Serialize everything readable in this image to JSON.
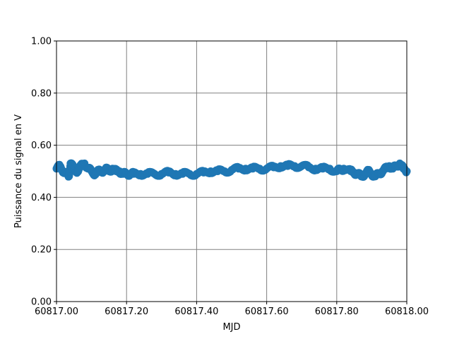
{
  "chart_data": {
    "type": "scatter",
    "xlabel": "MJD",
    "ylabel": "Puissance du signal en V",
    "xlim": [
      60817.0,
      60818.0
    ],
    "ylim": [
      0.0,
      1.0
    ],
    "x_ticks": [
      "60817.00",
      "60817.20",
      "60817.40",
      "60817.60",
      "60817.80",
      "60818.00"
    ],
    "y_ticks": [
      "0.00",
      "0.20",
      "0.40",
      "0.60",
      "0.80",
      "1.00"
    ],
    "grid": true,
    "grid_color": "#808080",
    "marker_color": "#1f77b4",
    "series": [
      {
        "x": [
          60817.0,
          60817.01,
          60817.02,
          60817.03,
          60817.035,
          60817.04,
          60817.05,
          60817.06,
          60817.07,
          60817.08,
          60817.09,
          60817.1,
          60817.11,
          60817.12,
          60817.13,
          60817.14,
          60817.15,
          60817.16,
          60817.17,
          60817.18,
          60817.19,
          60817.2,
          60817.21,
          60817.22,
          60817.24,
          60817.26,
          60817.28,
          60817.3,
          60817.32,
          60817.34,
          60817.36,
          60817.38,
          60817.4,
          60817.42,
          60817.44,
          60817.46,
          60817.48,
          60817.5,
          60817.52,
          60817.54,
          60817.56,
          60817.58,
          60817.6,
          60817.62,
          60817.64,
          60817.66,
          60817.68,
          60817.7,
          60817.72,
          60817.74,
          60817.76,
          60817.78,
          60817.8,
          60817.81,
          60817.82,
          60817.84,
          60817.85,
          60817.86,
          60817.87,
          60817.88,
          60817.89,
          60817.9,
          60817.91,
          60817.92,
          60817.93,
          60817.94,
          60817.95,
          60817.96,
          60817.97,
          60817.98,
          60817.99,
          60818.0
        ],
        "y": [
          0.51,
          0.52,
          0.5,
          0.49,
          0.48,
          0.53,
          0.51,
          0.5,
          0.52,
          0.53,
          0.51,
          0.5,
          0.49,
          0.5,
          0.5,
          0.51,
          0.5,
          0.51,
          0.5,
          0.5,
          0.49,
          0.49,
          0.49,
          0.49,
          0.49,
          0.49,
          0.49,
          0.49,
          0.495,
          0.49,
          0.49,
          0.49,
          0.49,
          0.495,
          0.5,
          0.5,
          0.5,
          0.505,
          0.51,
          0.51,
          0.51,
          0.51,
          0.51,
          0.515,
          0.52,
          0.52,
          0.52,
          0.52,
          0.515,
          0.51,
          0.51,
          0.51,
          0.5,
          0.505,
          0.51,
          0.5,
          0.495,
          0.49,
          0.48,
          0.49,
          0.5,
          0.49,
          0.48,
          0.49,
          0.5,
          0.51,
          0.52,
          0.51,
          0.52,
          0.53,
          0.51,
          0.5
        ]
      }
    ]
  }
}
